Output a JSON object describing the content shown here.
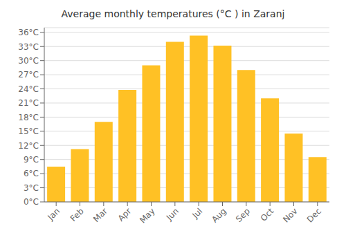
{
  "chart_data": {
    "type": "bar",
    "title": "Average monthly temperatures (°C ) in Zaranj",
    "categories": [
      "Jan",
      "Feb",
      "Mar",
      "Apr",
      "May",
      "Jun",
      "Jul",
      "Aug",
      "Sep",
      "Oct",
      "Nov",
      "Dec"
    ],
    "values": [
      7.5,
      11.2,
      17.0,
      23.8,
      29.0,
      34.0,
      35.3,
      33.2,
      28.0,
      22.0,
      14.5,
      9.5
    ],
    "color": "#FFC125",
    "ylim": [
      0,
      37
    ],
    "yticks": [
      {
        "value": 0,
        "label": "0°C"
      },
      {
        "value": 3,
        "label": "3°C"
      },
      {
        "value": 6,
        "label": "6°C"
      },
      {
        "value": 9,
        "label": "9°C"
      },
      {
        "value": 12,
        "label": "12°C"
      },
      {
        "value": 15,
        "label": "15°C"
      },
      {
        "value": 18,
        "label": "18°C"
      },
      {
        "value": 21,
        "label": "21°C"
      },
      {
        "value": 24,
        "label": "24°C"
      },
      {
        "value": 27,
        "label": "27°C"
      },
      {
        "value": 30,
        "label": "30°C"
      },
      {
        "value": 33,
        "label": "33°C"
      },
      {
        "value": 36,
        "label": "36°C"
      }
    ],
    "grid": true
  }
}
